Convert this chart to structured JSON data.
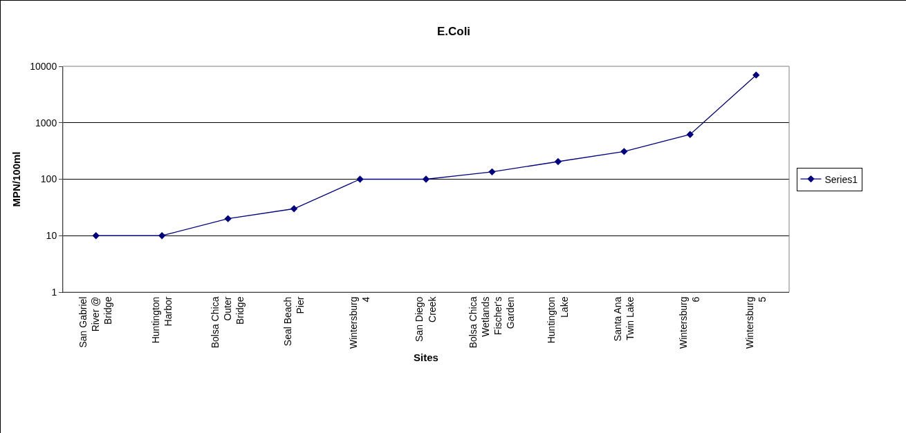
{
  "chart_data": {
    "type": "line",
    "title": "E.Coli",
    "xlabel": "Sites",
    "ylabel": "MPN/100ml",
    "categories": [
      "San Gabriel River @ Bridge",
      "Huntington Harbor",
      "Bolsa Chica Outer Bridge",
      "Seal Beach Pier",
      "Wintersburg 4",
      "San Diego Creek",
      "Bolsa Chica Wetlands Fischer's Garden",
      "Huntington Lake",
      "Santa Ana Twin Lake",
      "Wintersburg 6",
      "Wintersburg 5"
    ],
    "series": [
      {
        "name": "Series1",
        "color": "#000080",
        "values": [
          10,
          10,
          20,
          30,
          100,
          100,
          135,
          205,
          310,
          620,
          7000
        ]
      }
    ],
    "log": true,
    "ylim": [
      1,
      10000
    ],
    "yticks": [
      1,
      10,
      100,
      1000,
      10000
    ],
    "grid": "y",
    "legend": "right",
    "marker": "diamond",
    "line_style": "solid"
  }
}
